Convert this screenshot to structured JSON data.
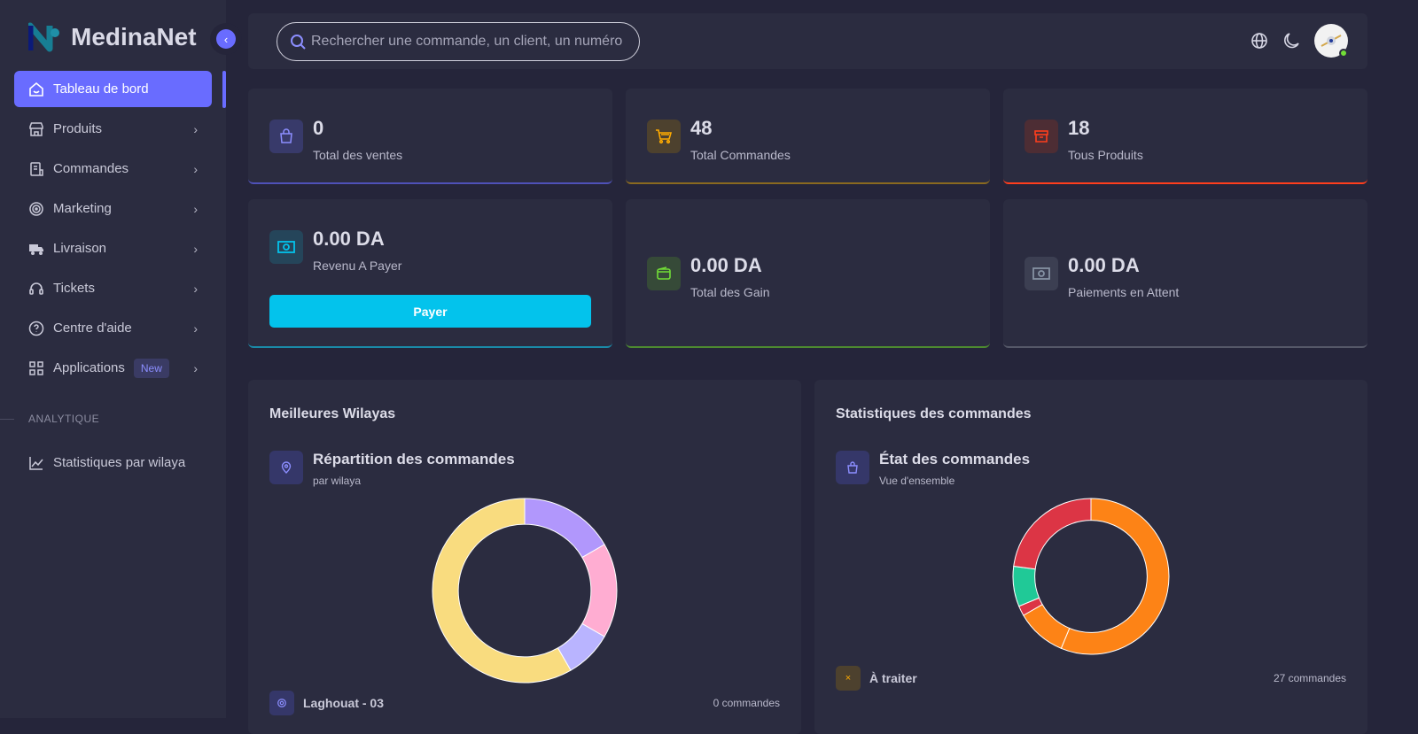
{
  "brand": {
    "name": "MedinaNet"
  },
  "sidebar": {
    "items": [
      {
        "label": "Tableau de bord",
        "icon": "home-icon",
        "active": true
      },
      {
        "label": "Produits",
        "icon": "store-icon"
      },
      {
        "label": "Commandes",
        "icon": "receipt-icon"
      },
      {
        "label": "Marketing",
        "icon": "target-icon"
      },
      {
        "label": "Livraison",
        "icon": "truck-icon"
      },
      {
        "label": "Tickets",
        "icon": "headset-icon"
      },
      {
        "label": "Centre d'aide",
        "icon": "help-icon"
      },
      {
        "label": "Applications",
        "icon": "grid-icon",
        "badge": "New"
      }
    ],
    "section": "ANALYTIQUE",
    "analytics": [
      {
        "label": "Statistiques par wilaya",
        "icon": "chart-line-icon"
      }
    ]
  },
  "search": {
    "placeholder": "Rechercher une commande, un client, un numéro"
  },
  "stats": [
    {
      "value": "0",
      "label": "Total des ventes",
      "color": "#696cff"
    },
    {
      "value": "48",
      "label": "Total Commandes",
      "color": "#ffab00"
    },
    {
      "value": "18",
      "label": "Tous Produits",
      "color": "#ff3e1d"
    },
    {
      "value": "0.00 DA",
      "label": "Revenu A Payer",
      "color": "#03c3ec",
      "button": "Payer"
    },
    {
      "value": "0.00 DA",
      "label": "Total des Gain",
      "color": "#71dd37"
    },
    {
      "value": "0.00 DA",
      "label": "Paiements en Attent",
      "color": "#8592a3"
    }
  ],
  "wilayas": {
    "title": "Meilleures Wilayas",
    "subtitle": "Répartition des commandes",
    "caption": "par wilaya",
    "first_row": {
      "name": "Laghouat - 03",
      "count": "0 commandes"
    }
  },
  "orders": {
    "title": "Statistiques des commandes",
    "subtitle": "État des commandes",
    "caption": "Vue d'ensemble",
    "first_row": {
      "name": "À traiter",
      "count": "27 commandes"
    }
  },
  "chart_data": [
    {
      "type": "pie",
      "donut": true,
      "values": [
        2,
        2,
        1,
        7
      ],
      "colors": [
        "#b197fc",
        "#ffadd2",
        "#b9b4ff",
        "#f9dc7f"
      ]
    },
    {
      "type": "pie",
      "donut": true,
      "values": [
        27,
        5,
        1,
        4,
        11
      ],
      "colors": [
        "#fd8316",
        "#fd8316",
        "#dc3545",
        "#20c997",
        "#dc3545"
      ]
    }
  ]
}
